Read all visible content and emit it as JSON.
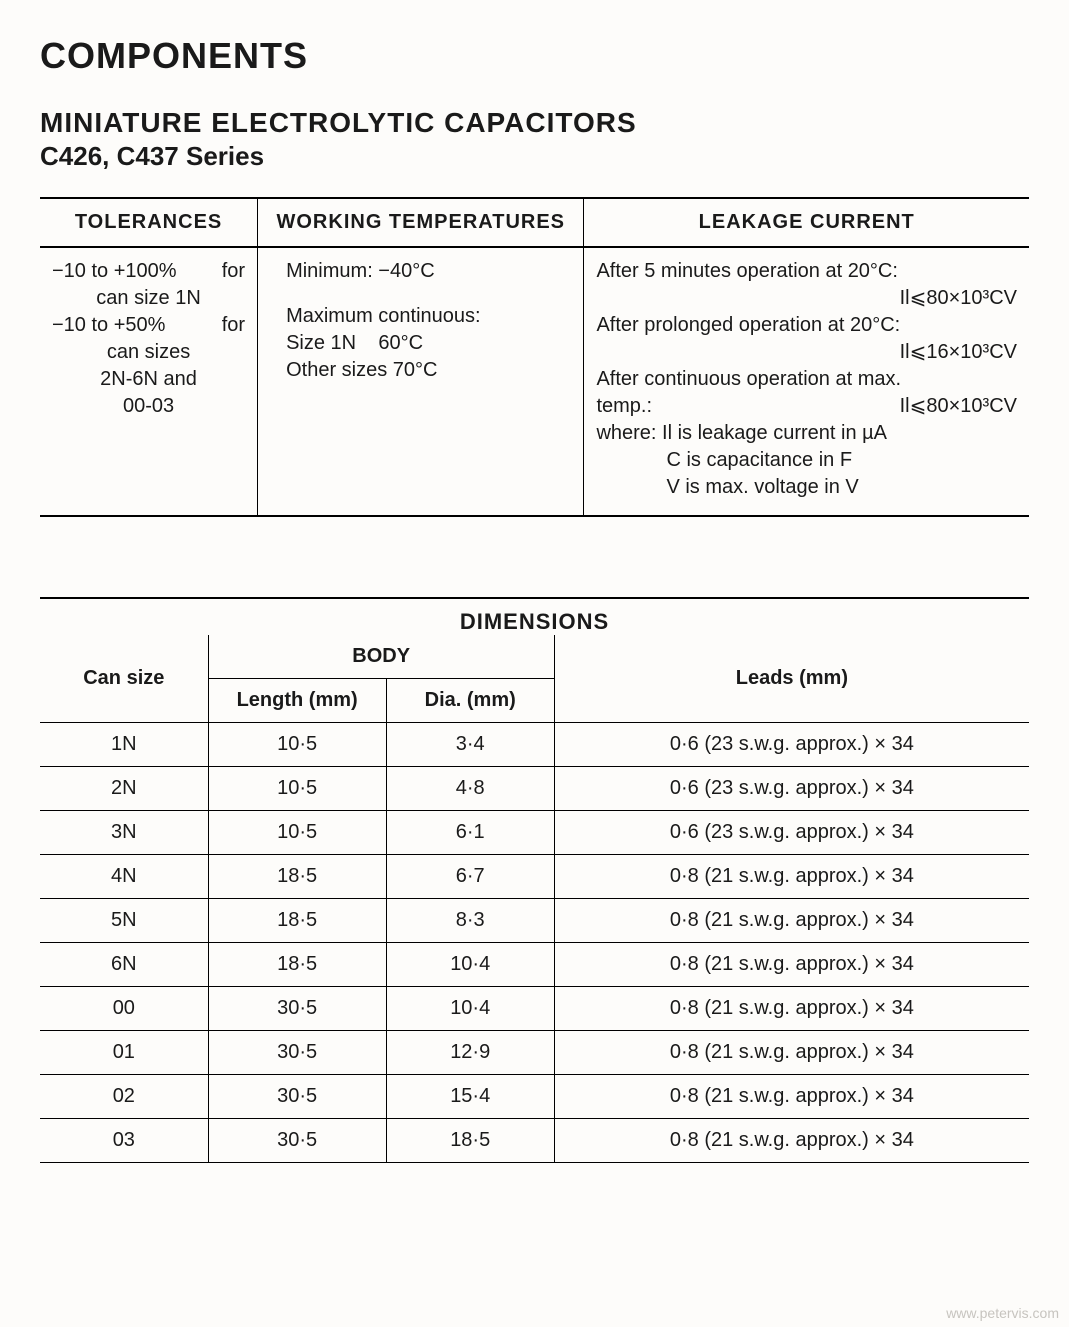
{
  "title": "COMPONENTS",
  "subtitle": "MINIATURE ELECTROLYTIC CAPACITORS",
  "series": "C426, C437 Series",
  "spec_headers": {
    "tolerances": "TOLERANCES",
    "working_temp": "WORKING TEMPERATURES",
    "leakage": "LEAKAGE CURRENT"
  },
  "tolerances": {
    "line1_left": "−10 to +100%",
    "line1_right": "for",
    "line2": "can size 1N",
    "line3_left": "−10 to +50%",
    "line3_right": "for",
    "line4": "can sizes",
    "line5": "2N-6N and",
    "line6": "00-03"
  },
  "working": {
    "min": "Minimum: −40°C",
    "max_label": "Maximum continuous:",
    "max1": "Size 1N    60°C",
    "max2": "Other sizes 70°C"
  },
  "leakage": {
    "l1a": "After 5 minutes operation at 20°C:",
    "l1b": "Il⩽80×10³CV",
    "l2a": "After prolonged operation at 20°C:",
    "l2b": "Il⩽16×10³CV",
    "l3a": "After continuous operation at max.",
    "l3b_left": "temp.:",
    "l3b_right": "Il⩽80×10³CV",
    "where": "where: Il is leakage current in µA",
    "def_c": "C is capacitance in F",
    "def_v": "V is max. voltage in V"
  },
  "dim_title": "DIMENSIONS",
  "dim_headers": {
    "can": "Can size",
    "body": "BODY",
    "length": "Length (mm)",
    "dia": "Dia. (mm)",
    "leads": "Leads (mm)"
  },
  "dim_rows": [
    {
      "can": "1N",
      "len": "10·5",
      "dia": "3·4",
      "leads": "0·6 (23 s.w.g. approx.) × 34"
    },
    {
      "can": "2N",
      "len": "10·5",
      "dia": "4·8",
      "leads": "0·6 (23 s.w.g. approx.) × 34"
    },
    {
      "can": "3N",
      "len": "10·5",
      "dia": "6·1",
      "leads": "0·6 (23 s.w.g. approx.) × 34"
    },
    {
      "can": "4N",
      "len": "18·5",
      "dia": "6·7",
      "leads": "0·8 (21 s.w.g. approx.) × 34"
    },
    {
      "can": "5N",
      "len": "18·5",
      "dia": "8·3",
      "leads": "0·8 (21 s.w.g. approx.) × 34"
    },
    {
      "can": "6N",
      "len": "18·5",
      "dia": "10·4",
      "leads": "0·8 (21 s.w.g. approx.) × 34"
    },
    {
      "can": "00",
      "len": "30·5",
      "dia": "10·4",
      "leads": "0·8 (21 s.w.g. approx.) × 34"
    },
    {
      "can": "01",
      "len": "30·5",
      "dia": "12·9",
      "leads": "0·8 (21 s.w.g. approx.) × 34"
    },
    {
      "can": "02",
      "len": "30·5",
      "dia": "15·4",
      "leads": "0·8 (21 s.w.g. approx.) × 34"
    },
    {
      "can": "03",
      "len": "30·5",
      "dia": "18·5",
      "leads": "0·8 (21 s.w.g. approx.) × 34"
    }
  ],
  "watermark": "www.petervis.com",
  "colors": {
    "background": "#fdfcfa",
    "text": "#1a1a1a",
    "rule": "#000000"
  }
}
